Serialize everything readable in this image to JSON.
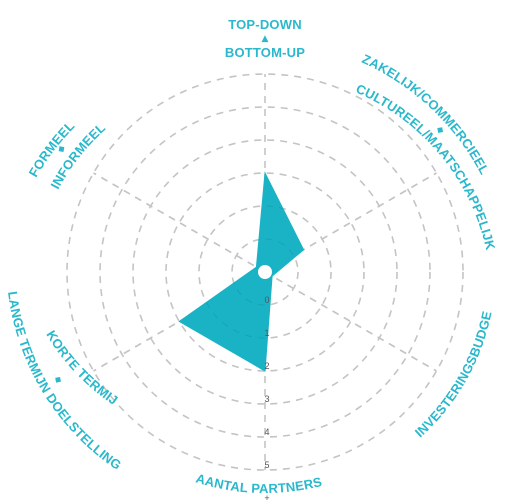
{
  "chart_data": {
    "type": "radar",
    "axes": [
      {
        "id": "top",
        "labels": [
          "TOP-DOWN",
          "BOTTOM-UP"
        ],
        "value": 3
      },
      {
        "id": "right-top",
        "labels": [
          "ZAKELIJK/COMMERCIEEL",
          "CULTUREEL/MAATSCHAPPELIJK"
        ],
        "value": 1.35
      },
      {
        "id": "right-bottom",
        "labels": [
          "INVESTERINGSBUDGET"
        ],
        "value": 0.25
      },
      {
        "id": "bottom",
        "labels": [
          "AANTAL PARTNERS"
        ],
        "value": 3
      },
      {
        "id": "left-bottom",
        "labels": [
          "LANGE TERMIJN DOELSTELLINGEN",
          "KORTE TERMIJN"
        ],
        "value": 3
      },
      {
        "id": "left-top",
        "labels": [
          "FORMEEL",
          "INFORMEEL"
        ],
        "value": 0.3
      }
    ],
    "rings": [
      0,
      1,
      2,
      3,
      4,
      5,
      6
    ],
    "tick_labels": [
      "0",
      "1",
      "2",
      "3",
      "4",
      "5",
      "+"
    ],
    "max": 6,
    "grid": true,
    "colors": {
      "fill": "#1ab3c6",
      "label": "#29b8cc",
      "grid": "#c4c4c4"
    }
  }
}
